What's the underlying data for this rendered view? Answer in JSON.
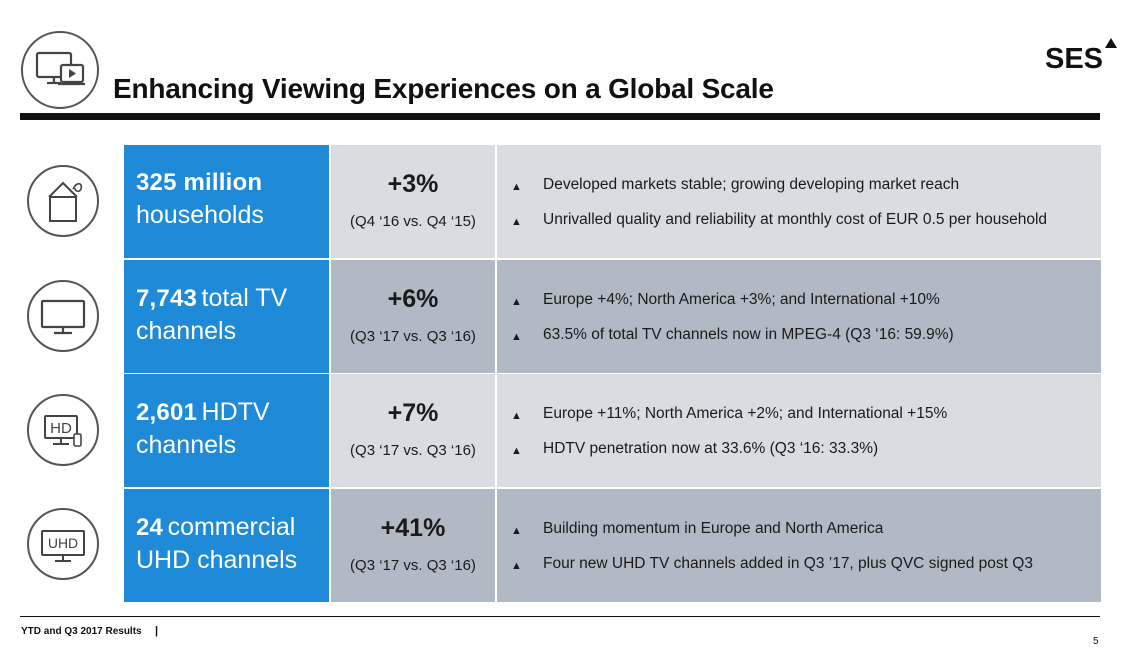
{
  "slide": {
    "title": "Enhancing Viewing Experiences on a Global Scale",
    "logo_text": "SES",
    "header_icon": "screens-icon"
  },
  "rows": [
    {
      "icon": "house-icon",
      "highlight": "325 million",
      "label": "households",
      "change": "+3%",
      "comparison": "(Q4 ‘16 vs. Q4 ‘15)",
      "bullets": [
        "Developed markets stable; growing developing market reach",
        "Unrivalled quality and reliability at monthly cost of EUR 0.5 per household"
      ]
    },
    {
      "icon": "tv-icon",
      "highlight": "7,743",
      "label": "total TV channels",
      "change": "+6%",
      "comparison": "(Q3 ‘17 vs. Q3 ‘16)",
      "bullets": [
        "Europe +4%; North America +3%; and International +10%",
        "63.5% of total TV channels now in MPEG-4 (Q3 ‘16: 59.9%)"
      ]
    },
    {
      "icon": "hd-tv-icon",
      "icon_text": "HD",
      "highlight": "2,601",
      "label": "HDTV channels",
      "change": "+7%",
      "comparison": "(Q3 ‘17 vs. Q3 ‘16)",
      "bullets": [
        "Europe +11%; North America +2%; and International +15%",
        "HDTV penetration now at 33.6% (Q3 ‘16: 33.3%)"
      ]
    },
    {
      "icon": "uhd-tv-icon",
      "icon_text": "UHD",
      "highlight": "24",
      "label": "commercial UHD channels",
      "change": "+41%",
      "comparison": "(Q3 ‘17 vs. Q3 ‘16)",
      "bullets": [
        "Building momentum in Europe and North America",
        "Four new UHD TV channels added in Q3 ’17, plus QVC signed post Q3"
      ]
    }
  ],
  "bullet_marker": "▲",
  "footer": {
    "text": "YTD and Q3 2017 Results",
    "separator": "|",
    "page": "5"
  },
  "colors": {
    "accent_blue": "#1f8ad8",
    "row_light": "#d9dce1",
    "row_dark": "#b1bac4"
  }
}
